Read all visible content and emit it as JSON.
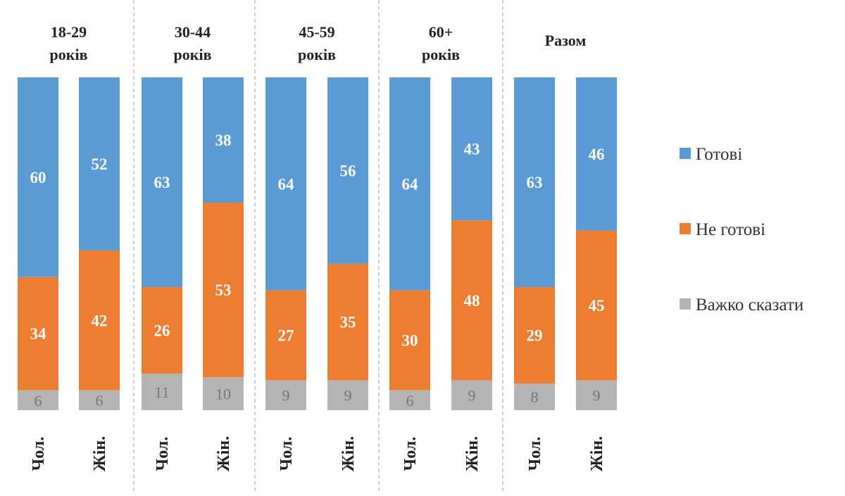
{
  "chart_data": {
    "type": "bar",
    "stacked": true,
    "groups": [
      {
        "label": [
          "18-29",
          "років"
        ],
        "categories": [
          "Чол.",
          "Жін."
        ]
      },
      {
        "label": [
          "30-44",
          "років"
        ],
        "categories": [
          "Чол.",
          "Жін."
        ]
      },
      {
        "label": [
          "45-59",
          "років"
        ],
        "categories": [
          "Чол.",
          "Жін."
        ]
      },
      {
        "label": [
          "60+",
          "років"
        ],
        "categories": [
          "Чол.",
          "Жін."
        ]
      },
      {
        "label": [
          "Разом"
        ],
        "categories": [
          "Чол.",
          "Жін."
        ]
      }
    ],
    "series": [
      {
        "name": "Готові",
        "color": "#5b9bd5",
        "values": [
          60,
          52,
          63,
          38,
          64,
          56,
          64,
          43,
          63,
          46
        ]
      },
      {
        "name": "Не готові",
        "color": "#ed7d31",
        "values": [
          34,
          42,
          26,
          53,
          27,
          35,
          30,
          48,
          29,
          45
        ]
      },
      {
        "name": "Важко сказати",
        "color": "#b4b4b4",
        "values": [
          6,
          6,
          11,
          10,
          9,
          9,
          6,
          9,
          8,
          9
        ]
      }
    ],
    "legend": "right",
    "grid": false,
    "ylim": [
      0,
      100
    ]
  }
}
